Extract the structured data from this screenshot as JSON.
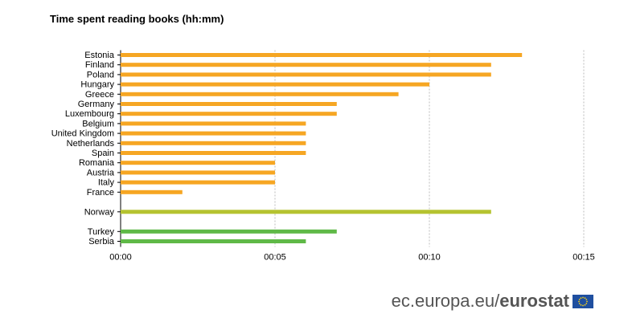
{
  "title": "Time spent reading books (hh:mm)",
  "footer": {
    "site_prefix": "ec.europa.eu/",
    "brand": "eurostat",
    "flag_icon": "eu-flag-icon"
  },
  "colors": {
    "eu": "#F6A623",
    "efta": "#B5C330",
    "candidate": "#5FB947",
    "grid": "#BBBBBB",
    "axis": "#000000"
  },
  "chart_data": {
    "type": "bar",
    "orientation": "horizontal",
    "title": "Time spent reading books (hh:mm)",
    "xlabel": "",
    "ylabel": "",
    "unit": "minutes",
    "xlim": [
      0,
      15
    ],
    "x_ticks": [
      "00:00",
      "00:05",
      "00:10",
      "00:15"
    ],
    "x_tick_values": [
      0,
      5,
      10,
      15
    ],
    "grid": true,
    "groups": [
      {
        "color_key": "eu",
        "categories": [
          "Estonia",
          "Finland",
          "Poland",
          "Hungary",
          "Greece",
          "Germany",
          "Luxembourg",
          "Belgium",
          "United Kingdom",
          "Netherlands",
          "Spain",
          "Romania",
          "Austria",
          "Italy",
          "France"
        ],
        "values": [
          13,
          12,
          12,
          10,
          9,
          7,
          7,
          6,
          6,
          6,
          6,
          5,
          5,
          5,
          2
        ]
      },
      {
        "color_key": "efta",
        "categories": [
          "Norway"
        ],
        "values": [
          12
        ]
      },
      {
        "color_key": "candidate",
        "categories": [
          "Turkey",
          "Serbia"
        ],
        "values": [
          7,
          6
        ]
      }
    ]
  }
}
